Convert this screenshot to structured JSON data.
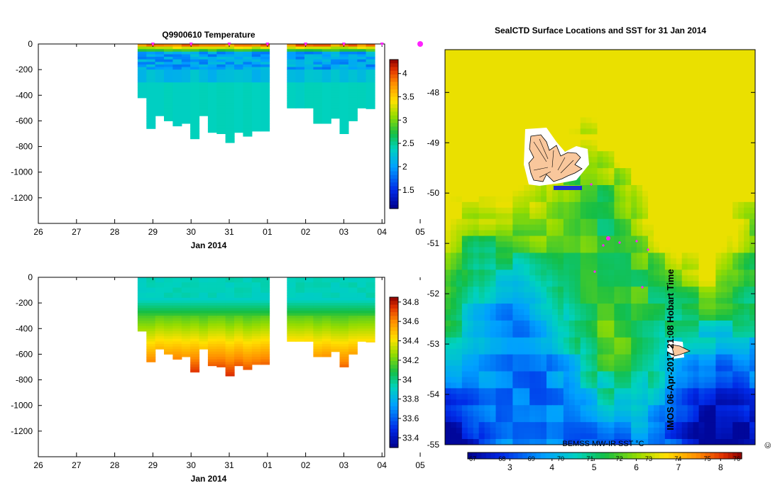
{
  "chart_data": [
    {
      "type": "heatmap",
      "title": "Q9900610  Temperature",
      "xlabel": "Jan 2014",
      "ylabel": "",
      "x_ticks": [
        "26",
        "27",
        "28",
        "29",
        "30",
        "31",
        "01",
        "02",
        "03",
        "04",
        "05"
      ],
      "y_ticks": [
        "0",
        "-200",
        "-400",
        "-600",
        "-800",
        "-1000",
        "-1200"
      ],
      "ylim": [
        -1400,
        0
      ],
      "colorbar_ticks": [
        "4",
        "3.5",
        "3",
        "2.5",
        "2",
        "1.5"
      ],
      "colorbar_range": [
        1.1,
        4.3
      ]
    },
    {
      "type": "heatmap",
      "title": "",
      "xlabel": "Jan 2014",
      "ylabel": "",
      "x_ticks": [
        "26",
        "27",
        "28",
        "29",
        "30",
        "31",
        "01",
        "02",
        "03",
        "04",
        "05"
      ],
      "y_ticks": [
        "0",
        "-200",
        "-400",
        "-600",
        "-800",
        "-1000",
        "-1200"
      ],
      "ylim": [
        -1400,
        0
      ],
      "colorbar_ticks": [
        "34.8",
        "34.6",
        "34.4",
        "34.2",
        "34",
        "33.8",
        "33.6",
        "33.4"
      ],
      "colorbar_range": [
        33.3,
        34.85
      ]
    },
    {
      "type": "heatmap",
      "title": "SealCTD Surface Locations and SST for 31 Jan 2014",
      "y_ticks": [
        "-48",
        "-49",
        "-50",
        "-51",
        "-52",
        "-53",
        "-54",
        "-55"
      ],
      "ylim": [
        -55,
        -47.15
      ],
      "colorbar_label": "BEMSS MW-IR SST °C",
      "colorbar_ticks": [
        "3",
        "4",
        "5",
        "6",
        "7",
        "8"
      ],
      "colorbar_ticks_upper": [
        "67",
        "68",
        "69",
        "70",
        "71",
        "72",
        "73",
        "74",
        "75",
        "76"
      ],
      "colorbar_range": [
        2,
        8.5
      ]
    }
  ],
  "profiles": {
    "day_start": 28.6,
    "day_width": 0.23,
    "depths": [
      420,
      660,
      560,
      600,
      640,
      620,
      740,
      560,
      690,
      700,
      770,
      690,
      720,
      680,
      680,
      null,
      null,
      500,
      500,
      500,
      620,
      620,
      580,
      700,
      600,
      500,
      505
    ]
  },
  "watermark": "IMOS 06-Apr-2017 21:08 Hobart Time",
  "copyright": "©"
}
